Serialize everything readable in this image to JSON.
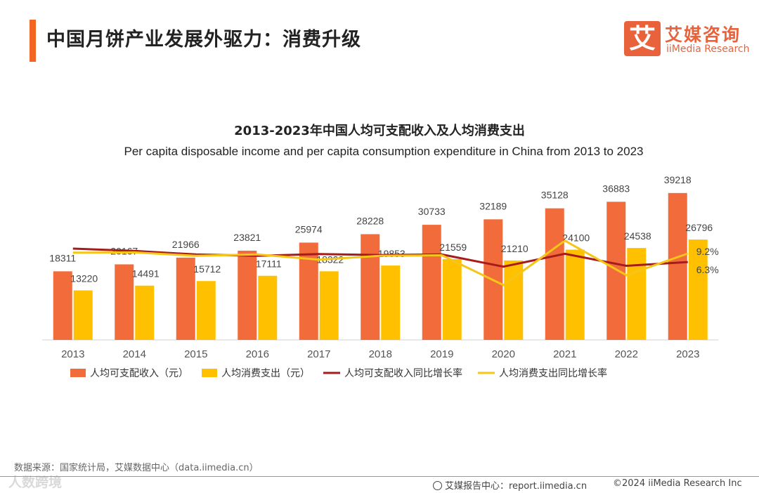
{
  "header": {
    "title": "中国月饼产业发展外驱力：消费升级",
    "logo_char": "艾",
    "logo_cn": "艾媒咨询",
    "logo_en": "iiMedia Research"
  },
  "chart_data": {
    "type": "bar",
    "title": "2013-2023年中国人均可支配收入及人均消费支出",
    "subtitle": "Per capita disposable income and per capita consumption expenditure in China from 2013 to 2023",
    "categories": [
      "2013",
      "2014",
      "2015",
      "2016",
      "2017",
      "2018",
      "2019",
      "2020",
      "2021",
      "2022",
      "2023"
    ],
    "series": [
      {
        "name": "人均可支配收入（元）",
        "kind": "bar",
        "color": "#f26b3a",
        "values": [
          18311,
          20167,
          21966,
          23821,
          25974,
          28228,
          30733,
          32189,
          35128,
          36883,
          39218
        ]
      },
      {
        "name": "人均消费支出（元）",
        "kind": "bar",
        "color": "#ffc000",
        "values": [
          13220,
          14491,
          15712,
          17111,
          18322,
          19853,
          21559,
          21210,
          24100,
          24538,
          26796
        ]
      },
      {
        "name": "人均可支配收入同比增长率",
        "kind": "line",
        "color": "#a61c1c",
        "unit": "%",
        "values": [
          10.9,
          10.1,
          8.9,
          8.4,
          9.0,
          8.7,
          8.9,
          4.7,
          9.1,
          5.0,
          6.3
        ]
      },
      {
        "name": "人均消费支出同比增长率",
        "kind": "line",
        "color": "#f5c518",
        "unit": "%",
        "values": [
          9.5,
          9.6,
          8.4,
          8.9,
          7.1,
          8.4,
          8.6,
          -1.6,
          13.6,
          1.8,
          9.2
        ]
      }
    ],
    "end_labels": [
      "9.2%",
      "6.3%"
    ],
    "ylim": [
      0,
      45000
    ],
    "grid": false,
    "legend": "bottom"
  },
  "footer": {
    "source": "数据来源：国家统计局，艾媒数据中心（data.iimedia.cn）",
    "watermark": "人数跨境",
    "report": "艾媒报告中心：report.iimedia.cn",
    "copyright": "©2024  iiMedia Research  Inc"
  }
}
